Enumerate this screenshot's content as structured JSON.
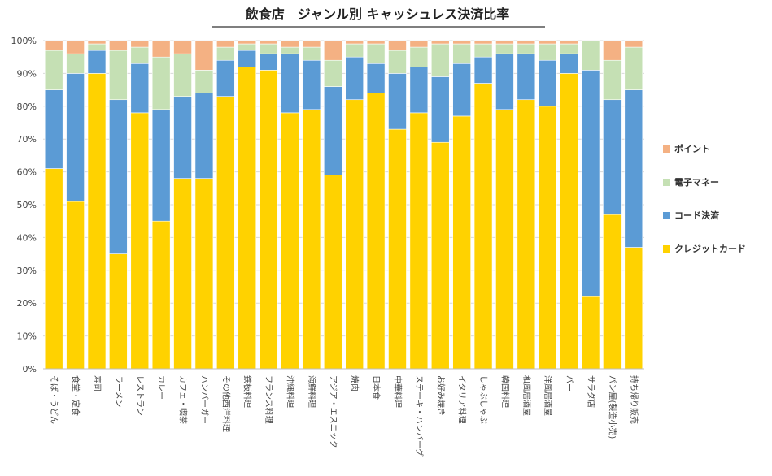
{
  "chart_data": {
    "type": "bar",
    "stacked": true,
    "title": "飲食店　ジャンル別 キャッシュレス決済比率",
    "xlabel": "",
    "ylabel": "",
    "ylim": [
      0,
      100
    ],
    "yticks": [
      "0%",
      "10%",
      "20%",
      "30%",
      "40%",
      "50%",
      "60%",
      "70%",
      "80%",
      "90%",
      "100%"
    ],
    "legend_position": "right",
    "categories": [
      "そば・うどん",
      "食堂・定食",
      "寿司",
      "ラーメン",
      "レストラン",
      "カレー",
      "カフェ・喫茶",
      "ハンバーガー",
      "その他西洋料理",
      "鉄板料理",
      "フランス料理",
      "沖縄料理",
      "海鮮料理",
      "アジア・エスニック",
      "焼肉",
      "日本食",
      "中華料理",
      "ステーキ・ハンバーグ",
      "お好み焼き",
      "イタリア料理",
      "しゃぶしゃぶ",
      "韓国料理",
      "和風居酒屋",
      "洋風居酒屋",
      "バー",
      "サラダ店",
      "パン屋(製造小売)",
      "持ち帰り販売"
    ],
    "series": [
      {
        "name": "クレジットカード",
        "color": "#FFD200",
        "values": [
          61,
          51,
          90,
          35,
          78,
          45,
          58,
          58,
          83,
          92,
          91,
          78,
          79,
          59,
          82,
          84,
          73,
          78,
          69,
          77,
          87,
          79,
          82,
          80,
          90,
          22,
          47,
          37
        ]
      },
      {
        "name": "コード決済",
        "color": "#5B9BD5",
        "values": [
          24,
          39,
          7,
          47,
          15,
          34,
          25,
          26,
          11,
          5,
          5,
          18,
          15,
          27,
          13,
          9,
          17,
          14,
          20,
          16,
          8,
          17,
          14,
          14,
          6,
          69,
          35,
          48
        ]
      },
      {
        "name": "電子マネー",
        "color": "#C5E0B4",
        "values": [
          12,
          6,
          2,
          15,
          5,
          16,
          13,
          7,
          4,
          2,
          3,
          2,
          4,
          8,
          4,
          6,
          7,
          6,
          10,
          6,
          4,
          3,
          3,
          5,
          3,
          9,
          12,
          13
        ]
      },
      {
        "name": "ポイント",
        "color": "#F4B183",
        "values": [
          3,
          4,
          1,
          3,
          2,
          5,
          4,
          9,
          2,
          1,
          1,
          2,
          2,
          6,
          1,
          1,
          3,
          2,
          1,
          1,
          1,
          1,
          1,
          1,
          1,
          0,
          6,
          2
        ]
      }
    ]
  }
}
